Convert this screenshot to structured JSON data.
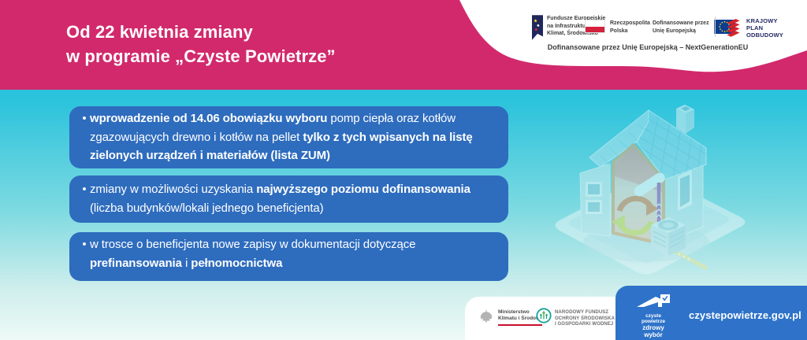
{
  "colors": {
    "pink": "#d2296c",
    "cyan_top": "#14bbd8",
    "cyan_bottom": "#eefaf7",
    "card_blue": "#2e6cbe",
    "footer_blue": "#2e73c9",
    "kpo_red": "#d8232a",
    "eu_flag_blue": "#0b3d91",
    "star_yellow": "#ffd617",
    "poland_red": "#d4213d"
  },
  "header": {
    "title_line1": "Od 22 kwietnia zmiany",
    "title_line2": "w programie „Czyste Powietrze”",
    "funding_note": "Dofinansowane przez Unię Europejską – NextGenerationEU",
    "logos": {
      "eu_funds": {
        "lines": [
          "Fundusze Europejskie",
          "na Infrastrukturę,",
          "Klimat, Środowisko"
        ]
      },
      "poland": {
        "lines": [
          "Rzeczpospolita",
          "Polska"
        ]
      },
      "eu_cofunded": {
        "lines": [
          "Dofinansowane przez",
          "Unię Europejską"
        ]
      },
      "kpo": {
        "lines": [
          "KRAJOWY",
          "PLAN",
          "ODBUDOWY"
        ]
      }
    }
  },
  "bullet_marker": "•",
  "bullets": [
    {
      "lines": [
        [
          {
            "t": "wprowadzenie od 14.06 obowiązku wyboru",
            "b": true
          },
          {
            "t": " pomp ciepła oraz kotłów",
            "b": false
          }
        ],
        [
          {
            "t": "zgazowujących drewno i kotłów na pellet ",
            "b": false
          },
          {
            "t": "tylko z tych wpisanych na listę",
            "b": true
          }
        ],
        [
          {
            "t": "zielonych urządzeń i materiałów (lista ZUM)",
            "b": true
          }
        ]
      ]
    },
    {
      "lines": [
        [
          {
            "t": "zmiany w możliwości uzyskania ",
            "b": false
          },
          {
            "t": "najwyższego poziomu dofinansowania",
            "b": true
          }
        ],
        [
          {
            "t": "(liczba budynków/lokali jednego beneficjenta)",
            "b": false
          }
        ]
      ]
    },
    {
      "lines": [
        [
          {
            "t": "w trosce o beneficjenta nowe zapisy w dokumentacji dotyczące",
            "b": false
          }
        ],
        [
          {
            "t": "prefinansowania",
            "b": true
          },
          {
            "t": " i ",
            "b": false
          },
          {
            "t": "pełnomocnictwa",
            "b": true
          }
        ]
      ]
    }
  ],
  "footer": {
    "ministry": {
      "lines": [
        "Ministerstwo",
        "Klimatu i Środowiska"
      ]
    },
    "nfosigw": {
      "lines": [
        "NARODOWY FUNDUSZ",
        "OCHRONY ŚRODOWISKA",
        "I GOSPODARKI WODNEJ"
      ]
    },
    "cp_logo": {
      "line1": "czyste powietrze",
      "line2": "zdrowy wybór"
    },
    "website": "czystepowietrze.gov.pl"
  },
  "illustration": {
    "description": "isometric house with heat pump"
  }
}
